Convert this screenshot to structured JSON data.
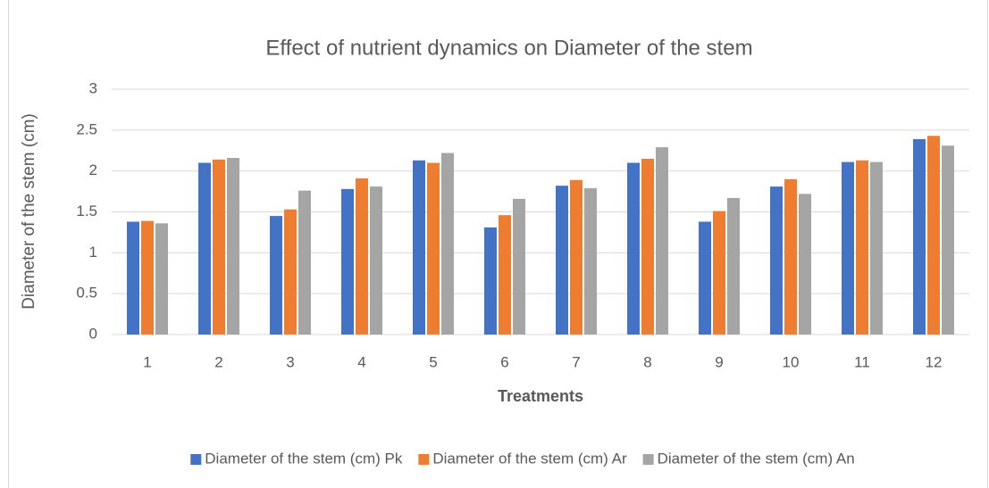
{
  "chart_data": {
    "type": "bar",
    "title": "Effect of nutrient dynamics on Diameter of the stem",
    "x_label": "Treatments",
    "y_label": "Diameter of the stem (cm)",
    "categories": [
      "1",
      "2",
      "3",
      "4",
      "5",
      "6",
      "7",
      "8",
      "9",
      "10",
      "11",
      "12"
    ],
    "series": [
      {
        "name": "Diameter of the stem (cm) Pk",
        "color": "#4472c4",
        "values": [
          1.38,
          2.1,
          1.45,
          1.78,
          2.13,
          1.31,
          1.82,
          2.1,
          1.38,
          1.81,
          2.11,
          2.39
        ]
      },
      {
        "name": "Diameter of the stem (cm) Ar",
        "color": "#ed7d31",
        "values": [
          1.39,
          2.14,
          1.53,
          1.91,
          2.1,
          1.46,
          1.89,
          2.15,
          1.51,
          1.9,
          2.13,
          2.43
        ]
      },
      {
        "name": "Diameter of the stem (cm) An",
        "color": "#a5a5a5",
        "values": [
          1.36,
          2.16,
          1.76,
          1.81,
          2.22,
          1.66,
          1.79,
          2.29,
          1.67,
          1.72,
          2.11,
          2.31
        ]
      }
    ],
    "ylim": [
      0,
      3
    ],
    "yticks": [
      0,
      0.5,
      1,
      1.5,
      2,
      2.5,
      3
    ],
    "grid": true,
    "legend": "bottom"
  }
}
